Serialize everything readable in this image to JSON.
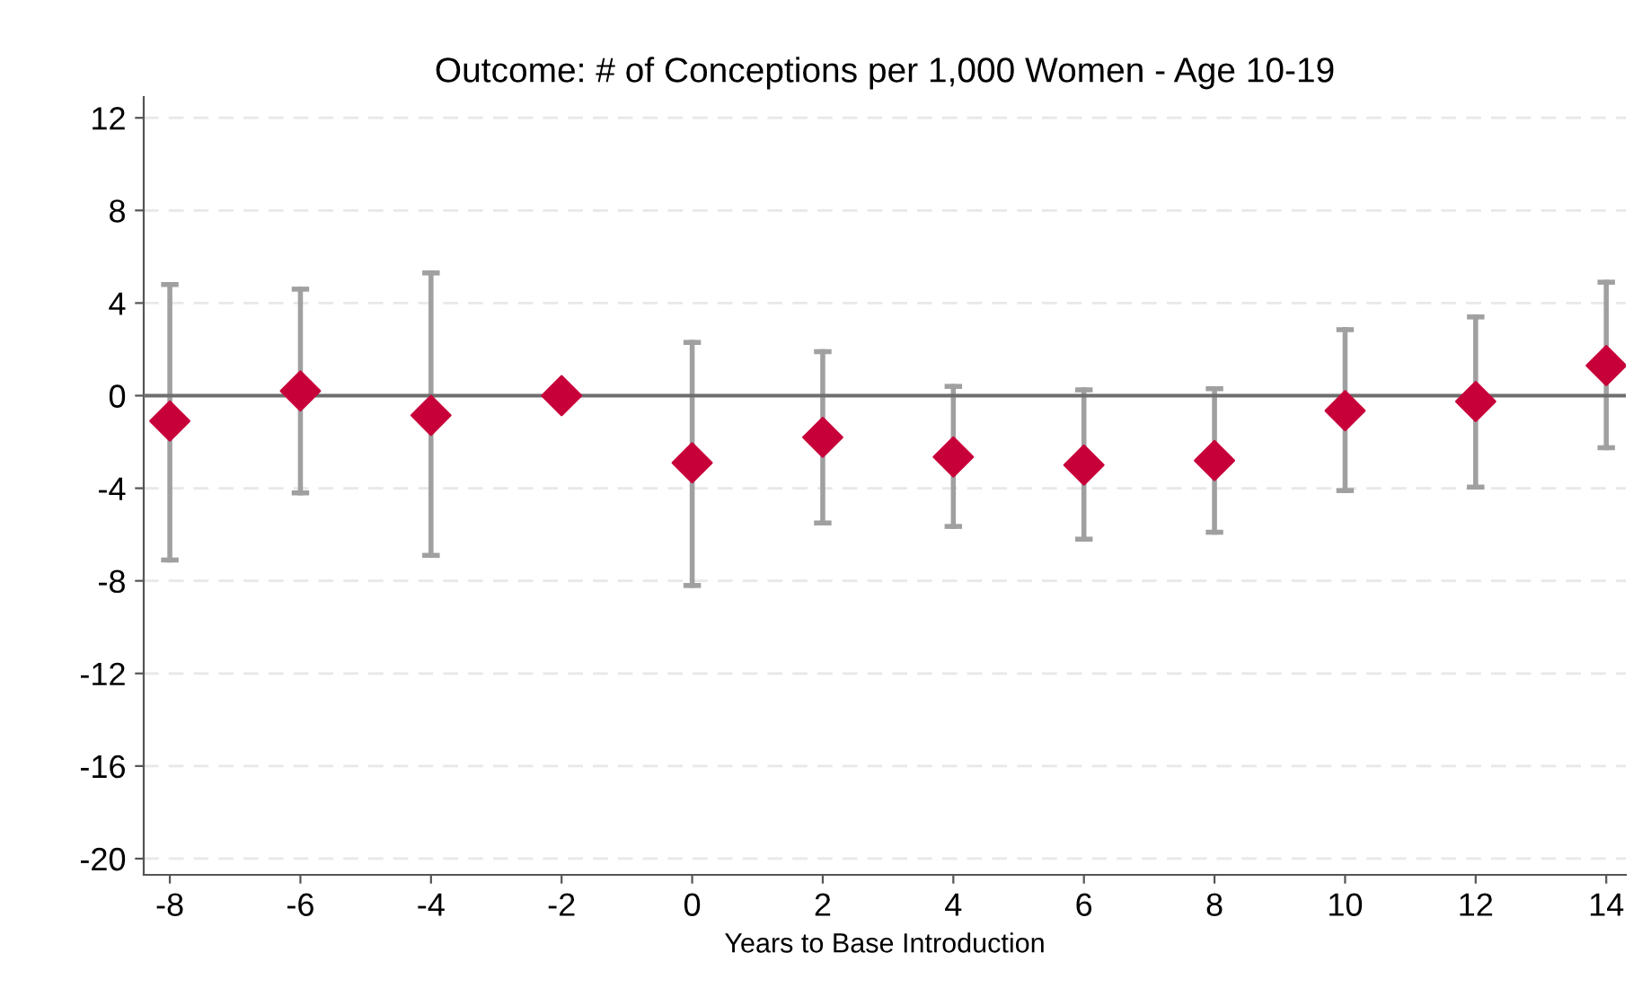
{
  "chart_data": {
    "type": "scatter",
    "title": "Outcome: # of Conceptions per 1,000 Women - Age 10-19",
    "xlabel": "Years to Base Introduction",
    "x": [
      -8,
      -6,
      -4,
      -2,
      0,
      2,
      4,
      6,
      8,
      10,
      12,
      14
    ],
    "series": [
      {
        "color": "#c8003a",
        "values": [
          -1.1,
          0.2,
          -0.85,
          0,
          -2.9,
          -1.8,
          -2.65,
          -3.0,
          -2.8,
          -0.65,
          -0.25,
          1.3
        ],
        "errors": [
          [
            -7.1,
            4.8
          ],
          [
            -4.2,
            4.6
          ],
          [
            -6.9,
            5.3
          ],
          null,
          [
            -8.2,
            2.3
          ],
          [
            -5.5,
            1.9
          ],
          [
            -5.65,
            0.4
          ],
          [
            -6.2,
            0.25
          ],
          [
            -5.9,
            0.3
          ],
          [
            -4.1,
            2.85
          ],
          [
            -3.95,
            3.4
          ],
          [
            -2.25,
            4.9
          ]
        ]
      }
    ],
    "marker": "diamond",
    "xlim": [
      -8.4,
      14.3
    ],
    "ylim": [
      -20.7,
      12.9
    ],
    "xticks": [
      -8,
      -6,
      -4,
      -2,
      0,
      2,
      4,
      6,
      8,
      10,
      12,
      14
    ],
    "yticks": [
      -20,
      -16,
      -12,
      -8,
      -4,
      0,
      4,
      8,
      12
    ],
    "grid": "y",
    "ref_lines": [
      {
        "axis": "y",
        "value": 0,
        "color": "#6e6e6e"
      }
    ],
    "legend": false
  }
}
